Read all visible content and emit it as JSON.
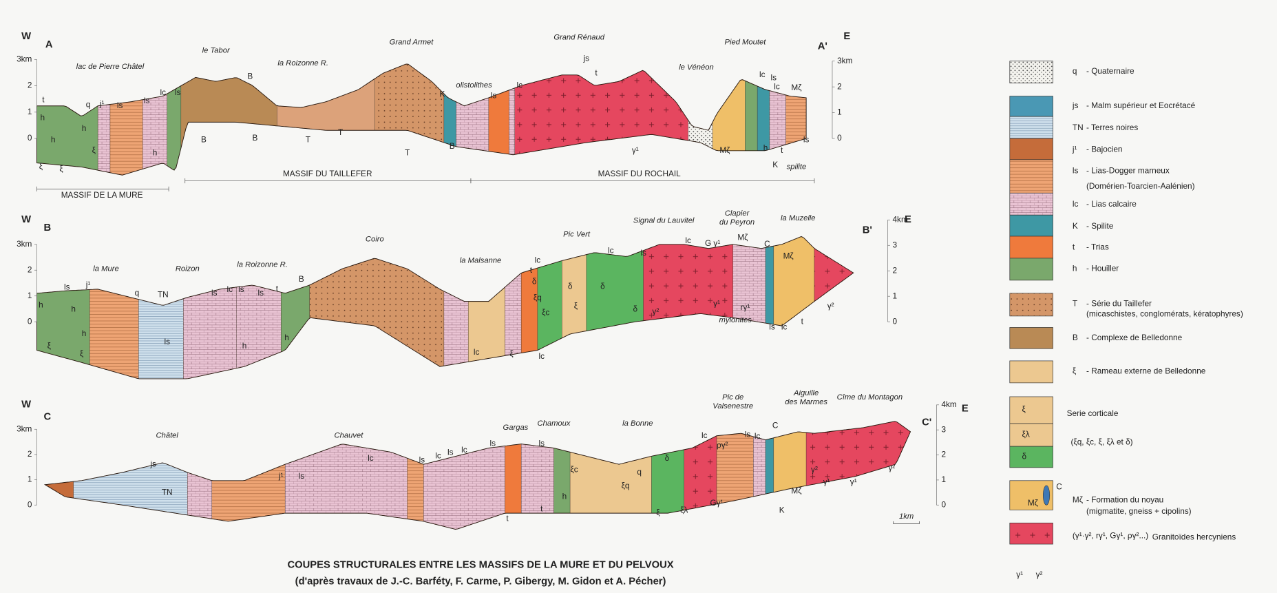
{
  "title": "COUPES STRUCTURALES ENTRE LES MASSIFS DE LA MURE ET DU PELVOUX",
  "subtitle": "(d'après travaux de J.-C. Barféty, F. Carme, P. Gibergy, M. Gidon et A. Pécher)",
  "scale": "1km",
  "sections": [
    {
      "name": "A",
      "end_name": "A'",
      "west": "W",
      "east": "E",
      "left_axis": [
        "3km",
        "2",
        "1",
        "0"
      ],
      "right_axis": [
        "3km",
        "2",
        "1",
        "0"
      ],
      "places": [
        "lac de Pierre Châtel",
        "le Tabor",
        "la Roizonne R.",
        "Grand Armet",
        "Grand Rénaud",
        "le Vénéon",
        "Pied Moutet",
        "olistolithes",
        "spilite"
      ],
      "massifs": [
        "MASSIF DE LA MURE",
        "MASSIF DU TAILLEFER",
        "MASSIF DU ROCHAIL"
      ],
      "formations": [
        "t",
        "h",
        "h",
        "ξ",
        "ξ",
        "q",
        "j¹",
        "ls",
        "h",
        "ξ",
        "h",
        "ls",
        "lc",
        "ls",
        "B",
        "B",
        "B",
        "T",
        "T",
        "T",
        "K",
        "B",
        "lc",
        "ls",
        "t",
        "js",
        "γ¹",
        "lc",
        "ls",
        "lc",
        "Mζ",
        "Mζ",
        "h",
        "t",
        "ls",
        "K"
      ]
    },
    {
      "name": "B",
      "end_name": "B'",
      "west": "W",
      "east": "E",
      "left_axis": [
        "3km",
        "2",
        "1",
        "0"
      ],
      "right_axis": [
        "4km",
        "3",
        "2",
        "1",
        "0"
      ],
      "places": [
        "la Mure",
        "Roizon",
        "la Roizonne R.",
        "Coiro",
        "la Malsanne",
        "Pic Vert",
        "Signal du Lauvitel",
        "Clapier",
        "du Peyron",
        "la Muzelle",
        "mylonites"
      ],
      "massifs": [],
      "formations": [
        "h",
        "ξ",
        "ξ",
        "ls",
        "j¹",
        "h",
        "h",
        "q",
        "TN",
        "ls",
        "lc",
        "ls",
        "ls",
        "t",
        "B",
        "ls",
        "h",
        "h",
        "lc",
        "ξ",
        "lc",
        "t",
        "lc",
        "δ",
        "ξq",
        "ξc",
        "δ",
        "ξ",
        "δ",
        "δ",
        "lc",
        "ls",
        "lc",
        "G γ¹",
        "Mζ",
        "C",
        "Mζ",
        "γ²",
        "γ¹",
        "rγ¹",
        "γ²",
        "ls",
        "lc",
        "t"
      ]
    },
    {
      "name": "C",
      "end_name": "C'",
      "west": "W",
      "east": "E",
      "left_axis": [
        "3km",
        "2",
        "1",
        "0"
      ],
      "right_axis": [
        "4km",
        "3",
        "2",
        "1",
        "0"
      ],
      "places": [
        "Châtel",
        "Chauvet",
        "Gargas",
        "Chamoux",
        "la Bonne",
        "Pic de",
        "Valsenestre",
        "Aiguille",
        "des Marmes",
        "Cîme du Montagon"
      ],
      "massifs": [],
      "formations": [
        "js",
        "TN",
        "j¹",
        "ls",
        "lc",
        "ls",
        "lc",
        "ls",
        "lc",
        "ls",
        "ls",
        "ξc",
        "h",
        "t",
        "t",
        "ξq",
        "q",
        "ξ",
        "ξλ",
        "δ",
        "Gγ¹",
        "lc",
        "ργ²",
        "ls",
        "lc",
        "C",
        "Mζ",
        "K",
        "γ¹",
        "γ²",
        "γ¹",
        "γ²"
      ]
    }
  ],
  "legend": [
    {
      "symbol": "q",
      "label": "- Quaternaire"
    },
    {
      "symbol": "js",
      "label": "- Malm supérieur et Eocrétacé"
    },
    {
      "symbol": "TN",
      "label": "- Terres noires"
    },
    {
      "symbol": "j¹",
      "label": "- Bajocien"
    },
    {
      "symbol": "ls",
      "label": "- Lias-Dogger marneux",
      "note": "(Domérien-Toarcien-Aalénien)"
    },
    {
      "symbol": "lc",
      "label": "- Lias calcaire"
    },
    {
      "symbol": "K",
      "label": "- Spilite"
    },
    {
      "symbol": "t",
      "label": "- Trias"
    },
    {
      "symbol": "h",
      "label": "- Houiller"
    },
    {
      "symbol": "T",
      "label": "- Série du Taillefer",
      "note": "(micaschistes, conglomérats, kératophyres)"
    },
    {
      "symbol": "B",
      "label": "- Complexe de Belledonne"
    },
    {
      "symbol": "ξ",
      "label": "- Rameau externe de Belledonne"
    },
    {
      "label": "Serie corticale",
      "note": "(ξq, ξc, ξ, ξλ et δ)",
      "swatch_symbols": [
        "ξ",
        "ξλ",
        "δ"
      ]
    },
    {
      "symbol": "Mζ",
      "label": "- Formation du noyau",
      "note": "(migmatite, gneiss + cipolins)",
      "swatch_symbols": [
        "Mζ",
        "C"
      ]
    },
    {
      "label": "Granitoïdes hercyniens",
      "note": "(γ¹·γ², rγ¹, Gγ¹, ργ²...)",
      "swatch_symbols": [
        "γ¹",
        "γ²"
      ]
    }
  ]
}
